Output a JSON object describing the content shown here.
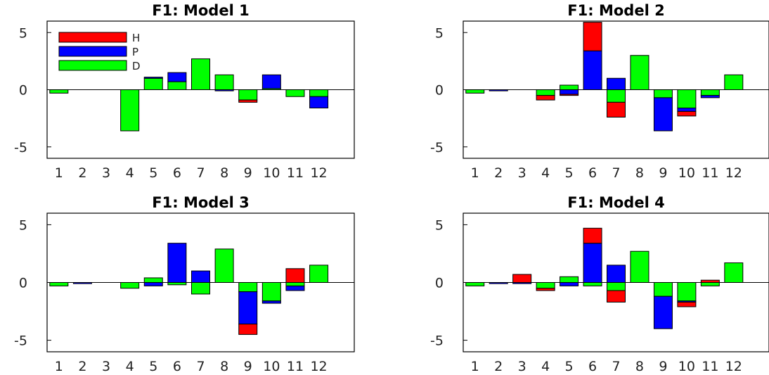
{
  "colors": {
    "H": "#ff0000",
    "P": "#0000ff",
    "D": "#00ff00",
    "axis": "#000000",
    "zero_line": "#000000"
  },
  "legend": {
    "entries": [
      "H",
      "P",
      "D"
    ],
    "placement": "top-left (panel 1)"
  },
  "chart_data": [
    {
      "type": "bar",
      "stacked": true,
      "title": "F1: Model 1",
      "categories": [
        "1",
        "2",
        "3",
        "4",
        "5",
        "6",
        "7",
        "8",
        "9",
        "10",
        "11",
        "12"
      ],
      "yticks": [
        "5",
        "0",
        "-5"
      ],
      "ylim": [
        -6,
        6
      ],
      "series": [
        {
          "name": "D",
          "values": [
            -0.3,
            0,
            0,
            -3.6,
            1.0,
            0.7,
            2.7,
            1.3,
            -0.9,
            0.1,
            -0.6,
            -0.6
          ]
        },
        {
          "name": "P",
          "values": [
            0,
            0,
            0,
            0,
            0.1,
            0.8,
            0,
            -0.1,
            0,
            1.2,
            0,
            -1.0
          ]
        },
        {
          "name": "H",
          "values": [
            0,
            0,
            0,
            0,
            0,
            0,
            0,
            0,
            -0.2,
            0,
            0,
            0
          ]
        }
      ]
    },
    {
      "type": "bar",
      "stacked": true,
      "title": "F1: Model 2",
      "categories": [
        "1",
        "2",
        "3",
        "4",
        "5",
        "6",
        "7",
        "8",
        "9",
        "10",
        "11",
        "12"
      ],
      "yticks": [
        "5",
        "0",
        "-5"
      ],
      "ylim": [
        -6,
        6
      ],
      "series": [
        {
          "name": "D",
          "values": [
            -0.3,
            0,
            0,
            -0.5,
            0.4,
            0,
            -1.1,
            3.0,
            -0.7,
            -1.6,
            -0.5,
            1.3
          ]
        },
        {
          "name": "P",
          "values": [
            0,
            -0.1,
            0,
            0,
            -0.4,
            3.4,
            1.0,
            0,
            -2.9,
            -0.3,
            -0.2,
            0
          ]
        },
        {
          "name": "H",
          "values": [
            0,
            0,
            0,
            -0.4,
            -0.1,
            2.5,
            -1.3,
            0,
            0,
            -0.4,
            0,
            0
          ]
        }
      ]
    },
    {
      "type": "bar",
      "stacked": true,
      "title": "F1: Model 3",
      "categories": [
        "1",
        "2",
        "3",
        "4",
        "5",
        "6",
        "7",
        "8",
        "9",
        "10",
        "11",
        "12"
      ],
      "yticks": [
        "5",
        "0",
        "-5"
      ],
      "ylim": [
        -6,
        6
      ],
      "series": [
        {
          "name": "D",
          "values": [
            -0.3,
            0,
            0,
            -0.5,
            0.4,
            -0.2,
            -1.0,
            2.9,
            -0.8,
            -1.6,
            -0.3,
            1.5
          ]
        },
        {
          "name": "P",
          "values": [
            0,
            -0.1,
            0,
            0,
            -0.3,
            3.4,
            1.0,
            0,
            -2.8,
            -0.2,
            -0.4,
            0
          ]
        },
        {
          "name": "H",
          "values": [
            0,
            0,
            0,
            0,
            0,
            0,
            0,
            0,
            -0.9,
            0,
            1.2,
            0
          ]
        }
      ]
    },
    {
      "type": "bar",
      "stacked": true,
      "title": "F1: Model 4",
      "categories": [
        "1",
        "2",
        "3",
        "4",
        "5",
        "6",
        "7",
        "8",
        "9",
        "10",
        "11",
        "12"
      ],
      "yticks": [
        "5",
        "0",
        "-5"
      ],
      "ylim": [
        -6,
        6
      ],
      "series": [
        {
          "name": "D",
          "values": [
            -0.3,
            0,
            0,
            -0.5,
            0.5,
            -0.3,
            -0.7,
            2.7,
            -1.2,
            -1.6,
            -0.3,
            1.7
          ]
        },
        {
          "name": "P",
          "values": [
            0,
            -0.1,
            -0.1,
            0,
            -0.3,
            3.4,
            1.5,
            0,
            -2.8,
            -0.1,
            0,
            0
          ]
        },
        {
          "name": "H",
          "values": [
            0,
            0,
            0.7,
            -0.2,
            0,
            1.3,
            -1.0,
            0,
            0,
            -0.4,
            0.2,
            0
          ]
        }
      ]
    }
  ]
}
